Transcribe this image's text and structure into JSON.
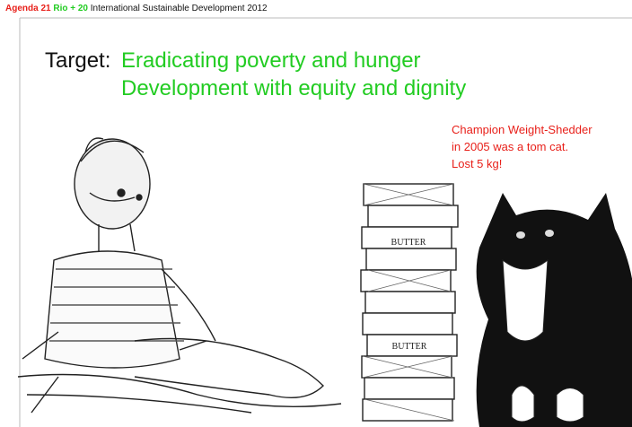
{
  "header": {
    "agenda": "Agenda 21",
    "rio": "Rio + 20",
    "title": "International Sustainable Development 2012"
  },
  "target": {
    "label": "Target:",
    "lines": [
      "Eradicating poverty and hunger",
      "Development with equity and dignity"
    ]
  },
  "annotation": {
    "lines": [
      "Champion Weight-Shedder",
      "in 2005 was a tom cat.",
      "Lost 5 kg!"
    ]
  },
  "illustration": {
    "butter_labels": [
      "BUTTER",
      "BUTTER"
    ]
  }
}
